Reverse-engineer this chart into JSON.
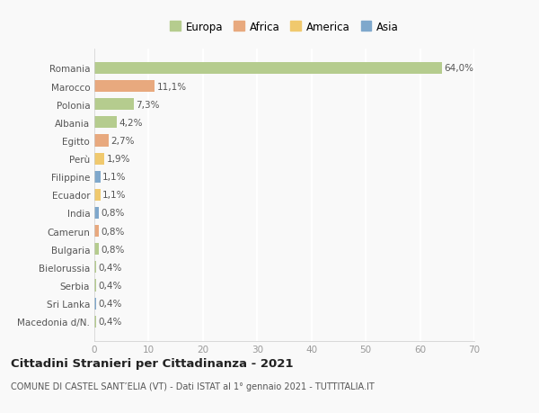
{
  "categories": [
    "Romania",
    "Marocco",
    "Polonia",
    "Albania",
    "Egitto",
    "Perù",
    "Filippine",
    "Ecuador",
    "India",
    "Camerun",
    "Bulgaria",
    "Bielorussia",
    "Serbia",
    "Sri Lanka",
    "Macedonia d/N."
  ],
  "values": [
    64.0,
    11.1,
    7.3,
    4.2,
    2.7,
    1.9,
    1.1,
    1.1,
    0.8,
    0.8,
    0.8,
    0.4,
    0.4,
    0.4,
    0.4
  ],
  "labels": [
    "64,0%",
    "11,1%",
    "7,3%",
    "4,2%",
    "2,7%",
    "1,9%",
    "1,1%",
    "1,1%",
    "0,8%",
    "0,8%",
    "0,8%",
    "0,4%",
    "0,4%",
    "0,4%",
    "0,4%"
  ],
  "colors": [
    "#b5cc8e",
    "#e8a97e",
    "#b5cc8e",
    "#b5cc8e",
    "#e8a97e",
    "#f0c96e",
    "#7fa8cc",
    "#f0c96e",
    "#7fa8cc",
    "#e8a97e",
    "#b5cc8e",
    "#b5cc8e",
    "#b5cc8e",
    "#7fa8cc",
    "#b5cc8e"
  ],
  "legend_labels": [
    "Europa",
    "Africa",
    "America",
    "Asia"
  ],
  "legend_colors": [
    "#b5cc8e",
    "#e8a97e",
    "#f0c96e",
    "#7fa8cc"
  ],
  "xlim": [
    0,
    70
  ],
  "xticks": [
    0,
    10,
    20,
    30,
    40,
    50,
    60,
    70
  ],
  "title": "Cittadini Stranieri per Cittadinanza - 2021",
  "subtitle": "COMUNE DI CASTEL SANT’ELIA (VT) - Dati ISTAT al 1° gennaio 2021 - TUTTITALIA.IT",
  "background_color": "#f9f9f9",
  "grid_color": "#ffffff",
  "bar_height": 0.65,
  "label_fontsize": 7.5,
  "tick_fontsize": 7.5,
  "title_fontsize": 9.5,
  "subtitle_fontsize": 7.0
}
